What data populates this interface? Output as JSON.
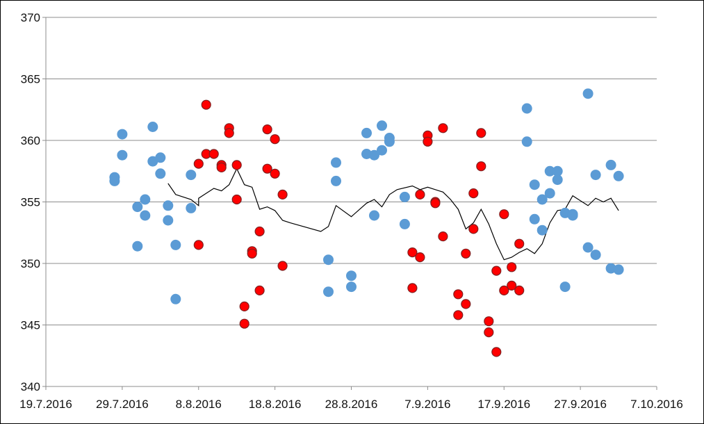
{
  "chart_data": {
    "type": "scatter",
    "title": "",
    "xlabel": "",
    "ylabel": "",
    "x_is_date": true,
    "xlim": [
      "2016-07-19",
      "2016-10-07"
    ],
    "ylim": [
      340,
      370
    ],
    "x_tick_labels": [
      "19.7.2016",
      "29.7.2016",
      "8.8.2016",
      "18.8.2016",
      "28.8.2016",
      "7.9.2016",
      "17.9.2016",
      "27.9.2016",
      "7.10.2016"
    ],
    "y_tick_labels": [
      "340",
      "345",
      "350",
      "355",
      "360",
      "365",
      "370"
    ],
    "grid": "horizontal",
    "legend": "none",
    "series": [
      {
        "type": "scatter",
        "color": "#5b9bd5",
        "points": [
          {
            "x": "2016-07-28",
            "y": 357.0
          },
          {
            "x": "2016-07-28",
            "y": 356.7
          },
          {
            "x": "2016-07-29",
            "y": 360.5
          },
          {
            "x": "2016-07-29",
            "y": 358.8
          },
          {
            "x": "2016-07-31",
            "y": 354.6
          },
          {
            "x": "2016-07-31",
            "y": 351.4
          },
          {
            "x": "2016-08-01",
            "y": 355.2
          },
          {
            "x": "2016-08-01",
            "y": 353.9
          },
          {
            "x": "2016-08-02",
            "y": 361.1
          },
          {
            "x": "2016-08-02",
            "y": 358.3
          },
          {
            "x": "2016-08-03",
            "y": 358.6
          },
          {
            "x": "2016-08-03",
            "y": 357.3
          },
          {
            "x": "2016-08-04",
            "y": 354.7
          },
          {
            "x": "2016-08-04",
            "y": 353.5
          },
          {
            "x": "2016-08-05",
            "y": 351.5
          },
          {
            "x": "2016-08-05",
            "y": 347.1
          },
          {
            "x": "2016-08-07",
            "y": 357.2
          },
          {
            "x": "2016-08-07",
            "y": 354.5
          },
          {
            "x": "2016-08-25",
            "y": 350.3
          },
          {
            "x": "2016-08-25",
            "y": 347.7
          },
          {
            "x": "2016-08-26",
            "y": 358.2
          },
          {
            "x": "2016-08-26",
            "y": 356.7
          },
          {
            "x": "2016-08-28",
            "y": 349.0
          },
          {
            "x": "2016-08-28",
            "y": 348.1
          },
          {
            "x": "2016-08-30",
            "y": 360.6
          },
          {
            "x": "2016-08-30",
            "y": 358.9
          },
          {
            "x": "2016-08-31",
            "y": 358.8
          },
          {
            "x": "2016-08-31",
            "y": 353.9
          },
          {
            "x": "2016-09-01",
            "y": 361.2
          },
          {
            "x": "2016-09-01",
            "y": 359.2
          },
          {
            "x": "2016-09-02",
            "y": 360.2
          },
          {
            "x": "2016-09-02",
            "y": 359.9
          },
          {
            "x": "2016-09-04",
            "y": 355.4
          },
          {
            "x": "2016-09-04",
            "y": 353.2
          },
          {
            "x": "2016-09-20",
            "y": 362.6
          },
          {
            "x": "2016-09-20",
            "y": 359.9
          },
          {
            "x": "2016-09-21",
            "y": 356.4
          },
          {
            "x": "2016-09-21",
            "y": 353.6
          },
          {
            "x": "2016-09-22",
            "y": 355.2
          },
          {
            "x": "2016-09-22",
            "y": 352.7
          },
          {
            "x": "2016-09-23",
            "y": 357.5
          },
          {
            "x": "2016-09-23",
            "y": 355.7
          },
          {
            "x": "2016-09-24",
            "y": 357.5
          },
          {
            "x": "2016-09-24",
            "y": 356.8
          },
          {
            "x": "2016-09-25",
            "y": 354.1
          },
          {
            "x": "2016-09-25",
            "y": 348.1
          },
          {
            "x": "2016-09-26",
            "y": 354.0
          },
          {
            "x": "2016-09-26",
            "y": 353.9
          },
          {
            "x": "2016-09-28",
            "y": 363.8
          },
          {
            "x": "2016-09-28",
            "y": 351.3
          },
          {
            "x": "2016-09-29",
            "y": 357.2
          },
          {
            "x": "2016-09-29",
            "y": 350.7
          },
          {
            "x": "2016-10-01",
            "y": 358.0
          },
          {
            "x": "2016-10-01",
            "y": 349.6
          },
          {
            "x": "2016-10-02",
            "y": 357.1
          },
          {
            "x": "2016-10-02",
            "y": 349.5
          }
        ]
      },
      {
        "type": "scatter",
        "color": "#ff0000",
        "edge": "#7f2020",
        "points": [
          {
            "x": "2016-08-08",
            "y": 358.1
          },
          {
            "x": "2016-08-08",
            "y": 351.5
          },
          {
            "x": "2016-08-09",
            "y": 362.9
          },
          {
            "x": "2016-08-09",
            "y": 358.9
          },
          {
            "x": "2016-08-10",
            "y": 358.9
          },
          {
            "x": "2016-08-11",
            "y": 358.0
          },
          {
            "x": "2016-08-11",
            "y": 357.8
          },
          {
            "x": "2016-08-12",
            "y": 361.0
          },
          {
            "x": "2016-08-12",
            "y": 360.6
          },
          {
            "x": "2016-08-13",
            "y": 358.0
          },
          {
            "x": "2016-08-13",
            "y": 355.2
          },
          {
            "x": "2016-08-14",
            "y": 346.5
          },
          {
            "x": "2016-08-14",
            "y": 345.1
          },
          {
            "x": "2016-08-15",
            "y": 351.0
          },
          {
            "x": "2016-08-15",
            "y": 350.8
          },
          {
            "x": "2016-08-16",
            "y": 352.6
          },
          {
            "x": "2016-08-16",
            "y": 347.8
          },
          {
            "x": "2016-08-17",
            "y": 360.9
          },
          {
            "x": "2016-08-17",
            "y": 357.7
          },
          {
            "x": "2016-08-18",
            "y": 360.1
          },
          {
            "x": "2016-08-18",
            "y": 357.3
          },
          {
            "x": "2016-08-19",
            "y": 355.6
          },
          {
            "x": "2016-08-19",
            "y": 349.8
          },
          {
            "x": "2016-09-05",
            "y": 350.9
          },
          {
            "x": "2016-09-05",
            "y": 348.0
          },
          {
            "x": "2016-09-06",
            "y": 355.6
          },
          {
            "x": "2016-09-06",
            "y": 350.5
          },
          {
            "x": "2016-09-07",
            "y": 360.4
          },
          {
            "x": "2016-09-07",
            "y": 359.9
          },
          {
            "x": "2016-09-08",
            "y": 355.0
          },
          {
            "x": "2016-09-08",
            "y": 354.9
          },
          {
            "x": "2016-09-09",
            "y": 361.0
          },
          {
            "x": "2016-09-09",
            "y": 352.2
          },
          {
            "x": "2016-09-11",
            "y": 347.5
          },
          {
            "x": "2016-09-11",
            "y": 345.8
          },
          {
            "x": "2016-09-12",
            "y": 350.8
          },
          {
            "x": "2016-09-12",
            "y": 346.7
          },
          {
            "x": "2016-09-13",
            "y": 355.7
          },
          {
            "x": "2016-09-13",
            "y": 352.8
          },
          {
            "x": "2016-09-14",
            "y": 360.6
          },
          {
            "x": "2016-09-14",
            "y": 357.9
          },
          {
            "x": "2016-09-15",
            "y": 345.3
          },
          {
            "x": "2016-09-15",
            "y": 344.4
          },
          {
            "x": "2016-09-16",
            "y": 349.4
          },
          {
            "x": "2016-09-16",
            "y": 342.8
          },
          {
            "x": "2016-09-17",
            "y": 354.0
          },
          {
            "x": "2016-09-17",
            "y": 347.8
          },
          {
            "x": "2016-09-18",
            "y": 349.7
          },
          {
            "x": "2016-09-18",
            "y": 348.2
          },
          {
            "x": "2016-09-19",
            "y": 351.6
          },
          {
            "x": "2016-09-19",
            "y": 347.8
          }
        ]
      },
      {
        "type": "line",
        "color": "#000000",
        "points": [
          {
            "x": "2016-08-04",
            "y": 356.5
          },
          {
            "x": "2016-08-05",
            "y": 355.6
          },
          {
            "x": "2016-08-07",
            "y": 355.2
          },
          {
            "x": "2016-08-08",
            "y": 354.7
          },
          {
            "x": "2016-08-08",
            "y": 355.3
          },
          {
            "x": "2016-08-09",
            "y": 355.7
          },
          {
            "x": "2016-08-10",
            "y": 356.1
          },
          {
            "x": "2016-08-11",
            "y": 355.9
          },
          {
            "x": "2016-08-12",
            "y": 356.4
          },
          {
            "x": "2016-08-13",
            "y": 357.7
          },
          {
            "x": "2016-08-14",
            "y": 356.4
          },
          {
            "x": "2016-08-15",
            "y": 356.2
          },
          {
            "x": "2016-08-16",
            "y": 354.4
          },
          {
            "x": "2016-08-17",
            "y": 354.6
          },
          {
            "x": "2016-08-18",
            "y": 354.3
          },
          {
            "x": "2016-08-19",
            "y": 353.5
          },
          {
            "x": "2016-08-20",
            "y": 353.3
          },
          {
            "x": "2016-08-24",
            "y": 352.6
          },
          {
            "x": "2016-08-25",
            "y": 353.0
          },
          {
            "x": "2016-08-26",
            "y": 354.7
          },
          {
            "x": "2016-08-28",
            "y": 353.8
          },
          {
            "x": "2016-08-30",
            "y": 354.9
          },
          {
            "x": "2016-08-31",
            "y": 355.2
          },
          {
            "x": "2016-09-01",
            "y": 354.6
          },
          {
            "x": "2016-09-02",
            "y": 355.6
          },
          {
            "x": "2016-09-03",
            "y": 356.0
          },
          {
            "x": "2016-09-05",
            "y": 356.3
          },
          {
            "x": "2016-09-06",
            "y": 356.0
          },
          {
            "x": "2016-09-07",
            "y": 356.2
          },
          {
            "x": "2016-09-08",
            "y": 356.0
          },
          {
            "x": "2016-09-09",
            "y": 355.8
          },
          {
            "x": "2016-09-10",
            "y": 355.2
          },
          {
            "x": "2016-09-11",
            "y": 354.4
          },
          {
            "x": "2016-09-12",
            "y": 352.8
          },
          {
            "x": "2016-09-13",
            "y": 353.3
          },
          {
            "x": "2016-09-14",
            "y": 354.4
          },
          {
            "x": "2016-09-15",
            "y": 353.2
          },
          {
            "x": "2016-09-16",
            "y": 351.6
          },
          {
            "x": "2016-09-17",
            "y": 350.3
          },
          {
            "x": "2016-09-18",
            "y": 350.5
          },
          {
            "x": "2016-09-19",
            "y": 350.9
          },
          {
            "x": "2016-09-20",
            "y": 351.2
          },
          {
            "x": "2016-09-21",
            "y": 350.8
          },
          {
            "x": "2016-09-22",
            "y": 351.6
          },
          {
            "x": "2016-09-23",
            "y": 353.3
          },
          {
            "x": "2016-09-24",
            "y": 354.3
          },
          {
            "x": "2016-09-25",
            "y": 354.4
          },
          {
            "x": "2016-09-26",
            "y": 355.5
          },
          {
            "x": "2016-09-27",
            "y": 355.1
          },
          {
            "x": "2016-09-28",
            "y": 354.7
          },
          {
            "x": "2016-09-29",
            "y": 355.3
          },
          {
            "x": "2016-09-30",
            "y": 355.0
          },
          {
            "x": "2016-10-01",
            "y": 355.3
          },
          {
            "x": "2016-10-02",
            "y": 354.3
          }
        ]
      }
    ]
  }
}
